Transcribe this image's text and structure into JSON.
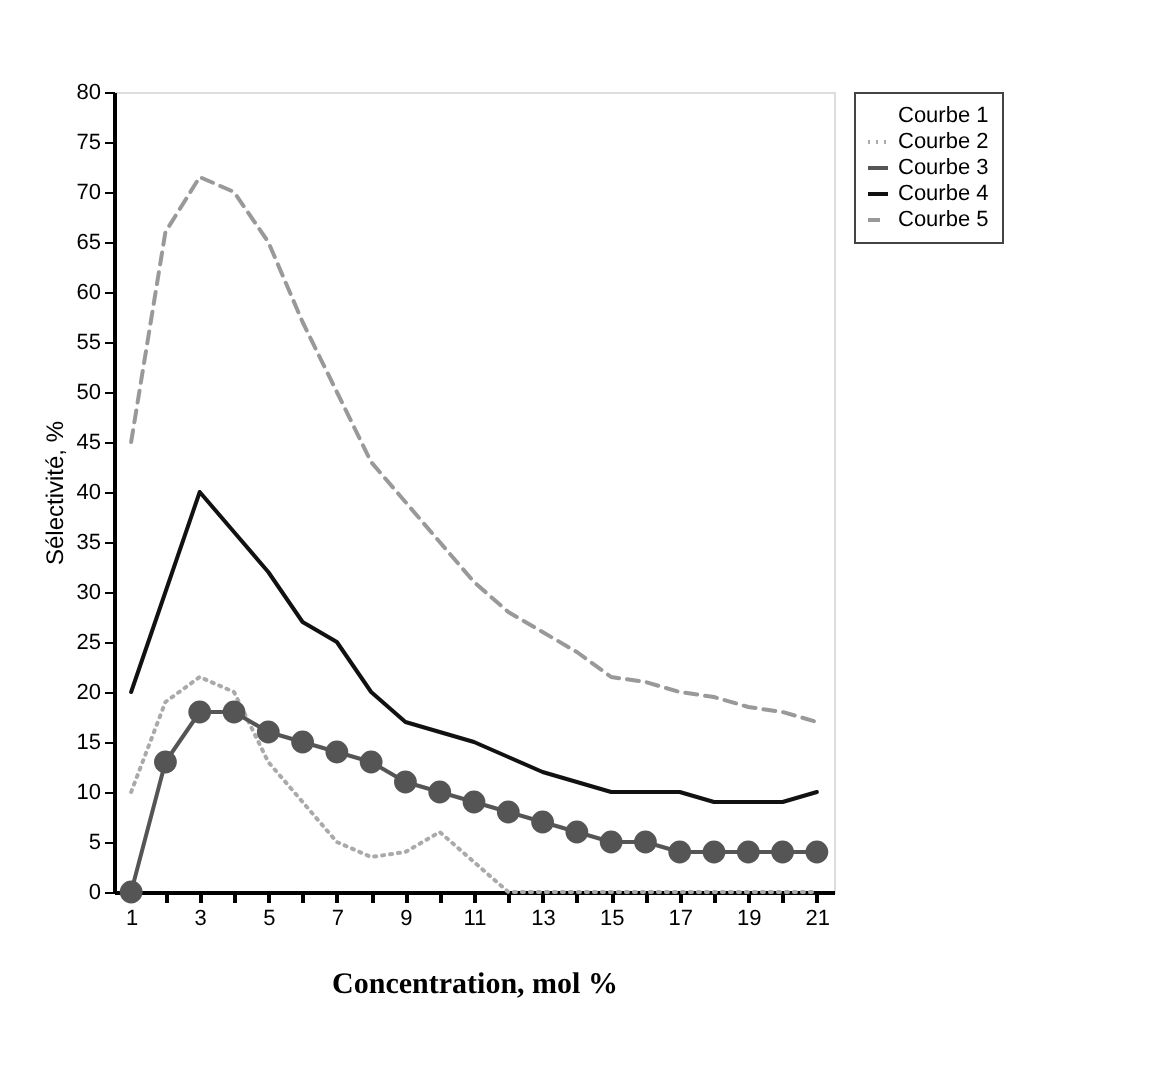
{
  "chart_data": {
    "type": "line",
    "xlabel": "Concentration, mol %",
    "ylabel": "Sélectivité, %",
    "x": [
      1,
      2,
      3,
      4,
      5,
      6,
      7,
      8,
      9,
      10,
      11,
      12,
      13,
      14,
      15,
      16,
      17,
      18,
      19,
      20,
      21
    ],
    "xlim": [
      0.5,
      21.5
    ],
    "xticks": [
      1,
      {
        "value": 2,
        "label": null
      },
      3,
      {
        "value": 4,
        "label": null
      },
      5,
      {
        "value": 6,
        "label": null
      },
      7,
      {
        "value": 8,
        "label": null
      },
      9,
      {
        "value": 10,
        "label": null
      },
      11,
      {
        "value": 12,
        "label": null
      },
      13,
      {
        "value": 14,
        "label": null
      },
      15,
      {
        "value": 16,
        "label": null
      },
      17,
      {
        "value": 18,
        "label": null
      },
      19,
      {
        "value": 20,
        "label": null
      },
      21
    ],
    "ylim": [
      0,
      80
    ],
    "yticks": [
      0,
      5,
      10,
      15,
      20,
      25,
      30,
      35,
      40,
      45,
      50,
      55,
      60,
      65,
      70,
      75,
      80
    ],
    "grid": false,
    "legend": "top right",
    "series": [
      {
        "name": "Courbe 1",
        "line_style": "solid",
        "marker": "none",
        "values": [
          null,
          null,
          null,
          null,
          null,
          null,
          null,
          null,
          null,
          null,
          null,
          null,
          null,
          null,
          null,
          null,
          null,
          null,
          null,
          null,
          null
        ]
      },
      {
        "name": "Courbe 2",
        "color": "#aaaaaa",
        "line_style": "dotted",
        "marker": "none",
        "values": [
          10,
          19,
          21.5,
          20,
          13,
          9,
          5,
          3.5,
          4,
          6,
          3,
          0,
          0,
          0,
          0,
          0,
          0,
          0,
          0,
          0,
          0
        ]
      },
      {
        "name": "Courbe 3",
        "color": "#555555",
        "line_style": "solid",
        "marker": "circle",
        "values": [
          0,
          13,
          18,
          18,
          16,
          15,
          14,
          13,
          11,
          10,
          9,
          8,
          7,
          6,
          5,
          5,
          4,
          4,
          4,
          4,
          4
        ]
      },
      {
        "name": "Courbe 4",
        "color": "#111111",
        "line_style": "solid",
        "marker": "none",
        "values": [
          20,
          30,
          40,
          36,
          32,
          27,
          25,
          20,
          17,
          16,
          15,
          13.5,
          12,
          11,
          10,
          10,
          10,
          9,
          9,
          9,
          10
        ]
      },
      {
        "name": "Courbe 5",
        "color": "#999999",
        "line_style": "dashed",
        "marker": "none",
        "values": [
          45,
          66,
          71.5,
          70,
          65,
          57,
          50,
          43,
          39,
          35,
          31,
          28,
          26,
          24,
          21.5,
          21,
          20,
          19.5,
          18.5,
          18,
          17
        ]
      }
    ]
  }
}
